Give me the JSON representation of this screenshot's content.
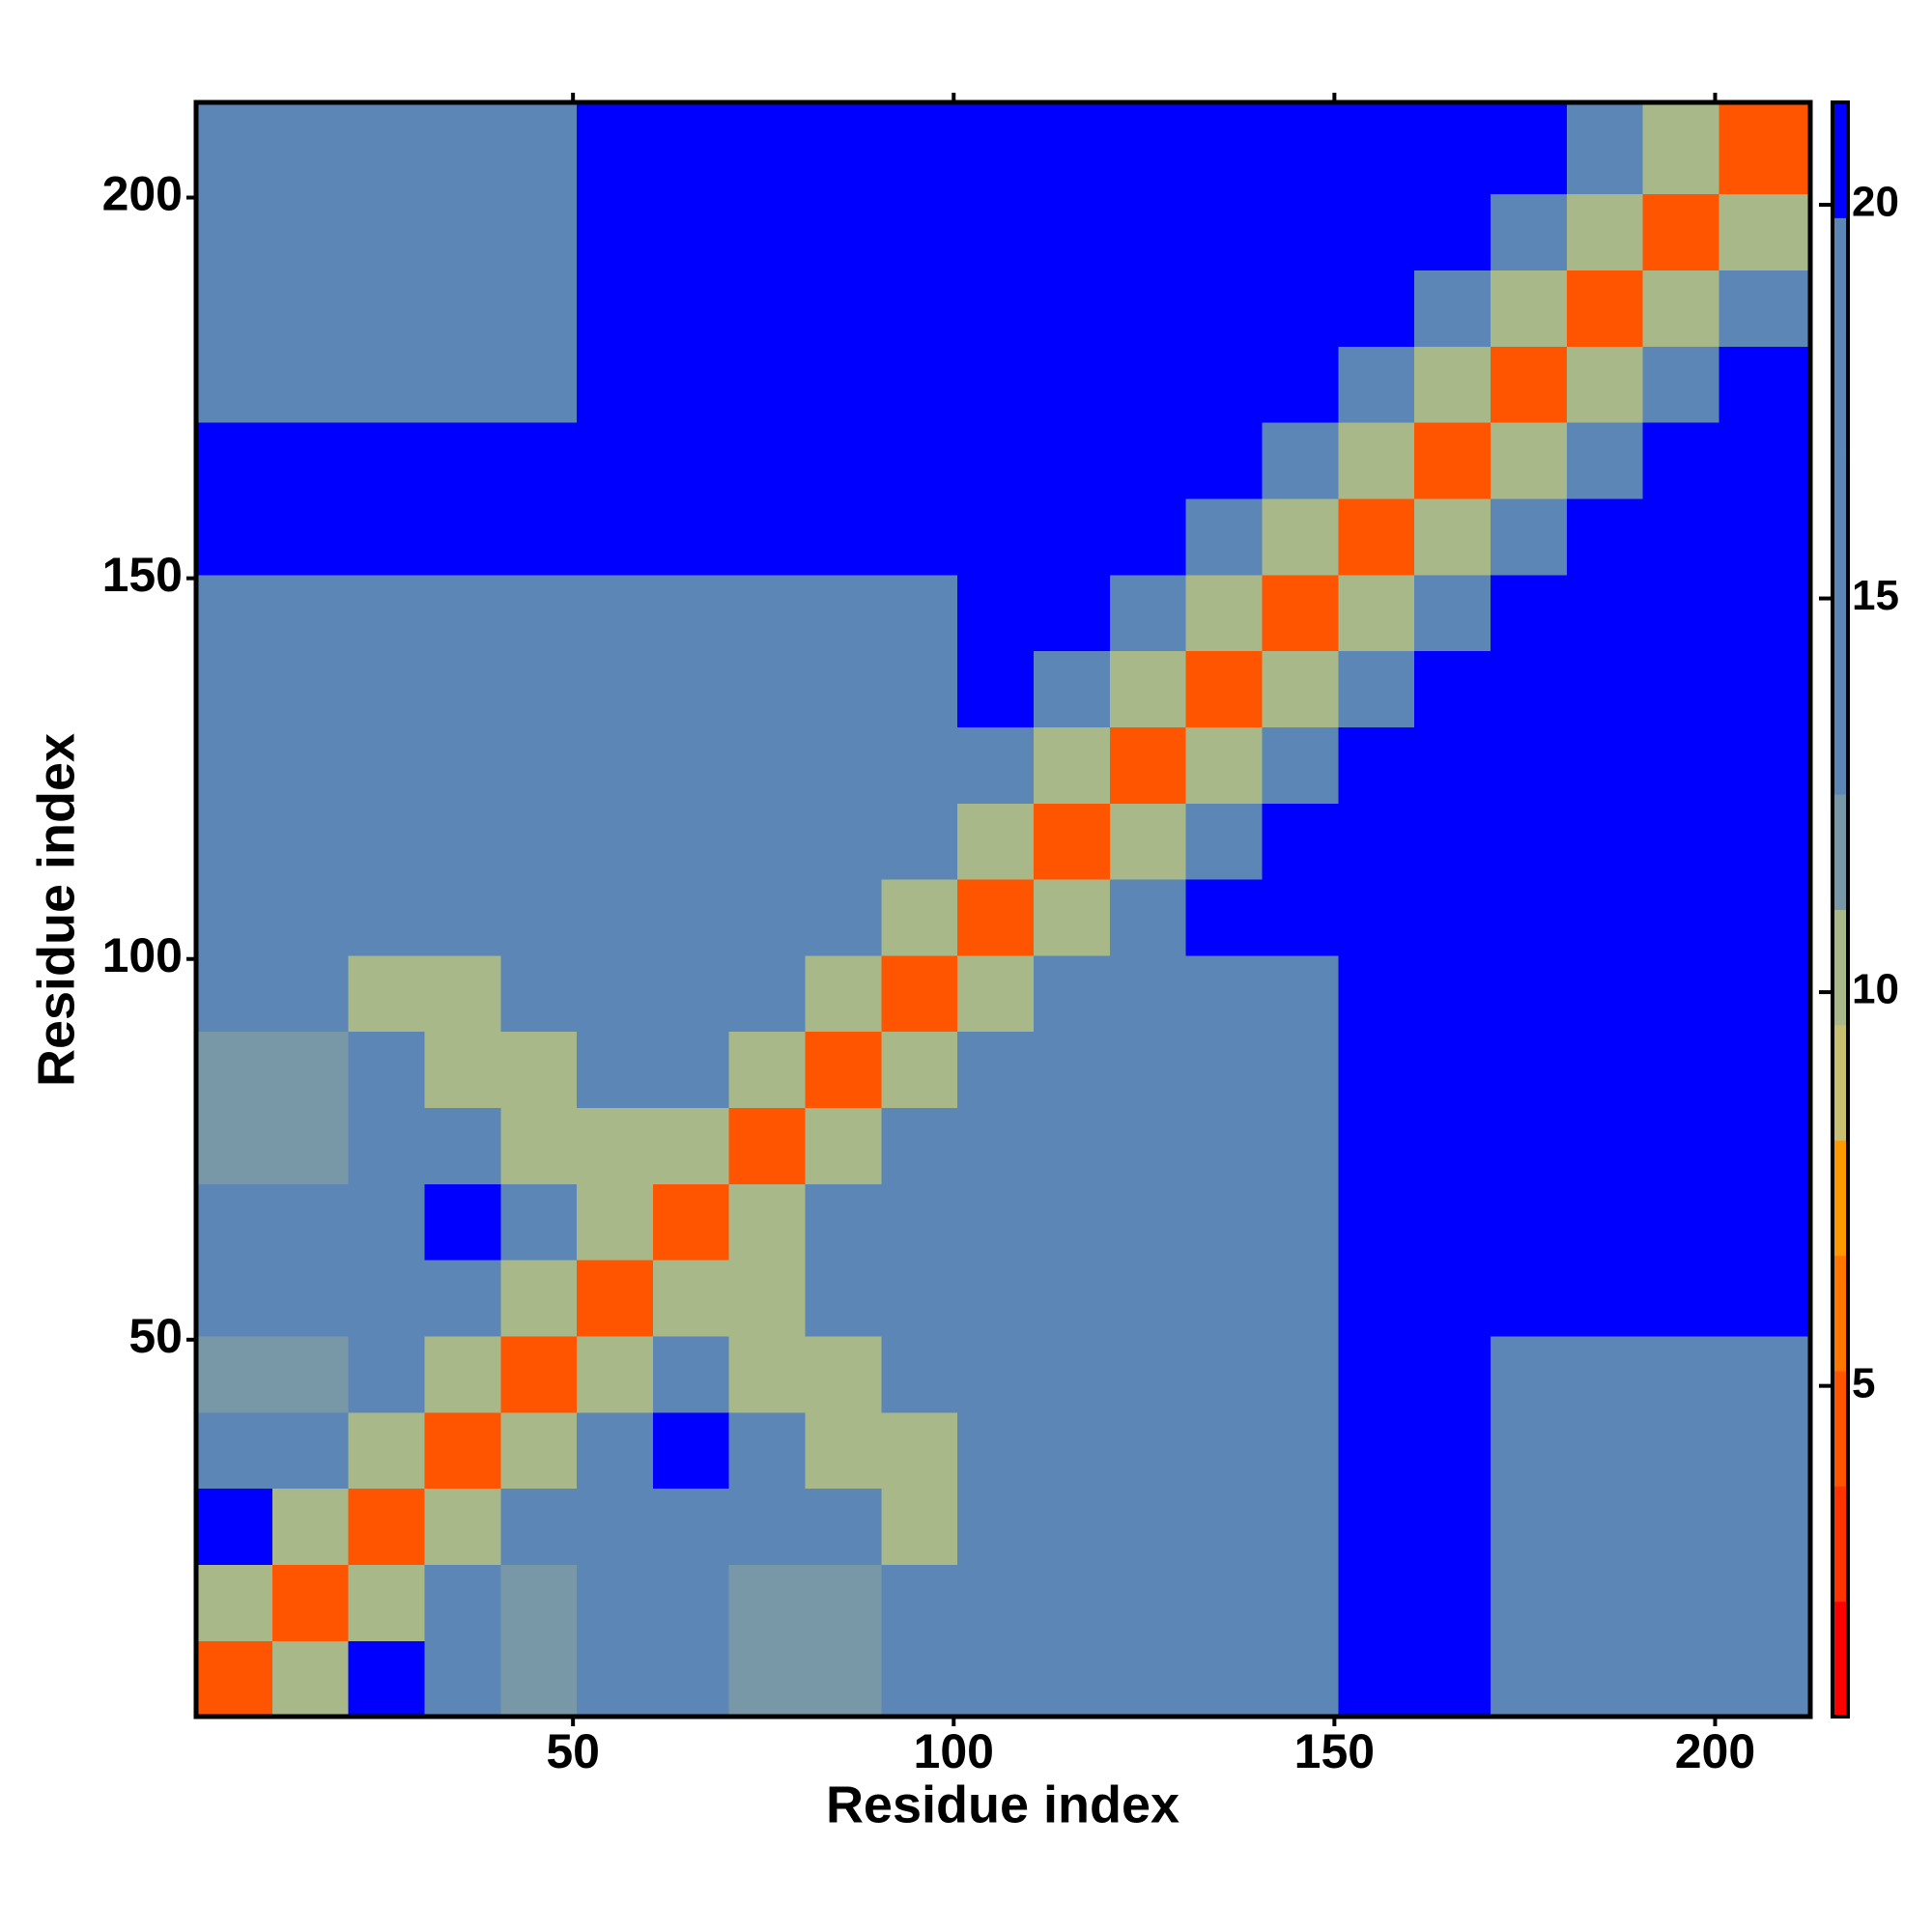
{
  "chart_data": {
    "type": "heatmap",
    "x_label": "Residue index",
    "y_label": "Residue index",
    "xlim": [
      0.5,
      212.5
    ],
    "ylim": [
      0.5,
      212.5
    ],
    "xticks": [
      50,
      100,
      150,
      200
    ],
    "yticks": [
      50,
      100,
      150,
      200
    ],
    "x_bins": [
      0.5,
      10.5,
      20.5,
      30.5,
      40.5,
      50.5,
      60.5,
      70.5,
      80.5,
      90.5,
      100.5,
      110.5,
      120.5,
      130.5,
      140.5,
      150.5,
      160.5,
      170.5,
      180.5,
      190.5,
      200.5,
      212.5
    ],
    "y_bins": [
      0.5,
      10.5,
      20.5,
      30.5,
      40.5,
      50.5,
      60.5,
      70.5,
      80.5,
      90.5,
      100.5,
      110.5,
      120.5,
      130.5,
      140.5,
      150.5,
      160.5,
      170.5,
      180.5,
      190.5,
      200.5,
      212.5
    ],
    "zlim": [
      0.8,
      21.3
    ],
    "zticks": [
      5,
      10,
      15,
      20
    ],
    "colors": [
      "#ff0000",
      "#ff3300",
      "#ff5500",
      "#ff7700",
      "#ff9900",
      "#c8c070",
      "#a8b888",
      "#7898a8",
      "#5b86b6",
      "#5b86b6",
      "#5b86b6",
      "#5b86b6",
      "#5b86b6",
      "#0000ff"
    ],
    "z": [
      [
        5,
        11,
        20,
        16,
        12,
        16,
        16,
        12,
        12,
        16,
        17,
        17,
        19,
        19,
        19,
        21,
        21,
        19,
        19,
        19,
        19
      ],
      [
        11,
        5,
        11,
        16,
        12,
        16,
        16,
        12,
        12,
        16,
        17,
        17,
        19,
        19,
        19,
        21,
        21,
        19,
        19,
        19,
        19
      ],
      [
        20,
        11,
        5,
        11,
        16,
        16,
        19,
        16,
        16,
        10,
        17,
        17,
        19,
        19,
        19,
        21,
        21,
        19,
        19,
        19,
        19
      ],
      [
        16,
        16,
        11,
        5,
        11,
        16,
        21,
        19,
        10,
        10,
        17,
        17,
        19,
        19,
        19,
        21,
        21,
        19,
        19,
        19,
        19
      ],
      [
        12,
        12,
        16,
        11,
        5,
        11,
        16,
        10,
        10,
        16,
        17,
        17,
        19,
        19,
        19,
        21,
        21,
        19,
        19,
        19,
        19
      ],
      [
        16,
        16,
        16,
        16,
        11,
        5,
        11,
        10,
        16,
        16,
        18,
        19,
        19,
        19,
        19,
        21,
        21,
        20,
        20,
        20,
        20
      ],
      [
        16,
        16,
        19,
        21,
        16,
        11,
        5,
        11,
        16,
        16,
        18,
        19,
        19,
        19,
        19,
        21,
        21,
        20,
        20,
        20,
        20
      ],
      [
        12,
        12,
        16,
        19,
        10,
        10,
        11,
        5,
        11,
        16,
        18,
        19,
        19,
        19,
        19,
        21,
        21,
        20,
        20,
        20,
        20
      ],
      [
        12,
        12,
        16,
        10,
        10,
        16,
        16,
        11,
        5,
        11,
        17,
        19,
        19,
        19,
        19,
        21,
        21,
        20,
        20,
        20,
        20
      ],
      [
        16,
        16,
        10,
        10,
        16,
        16,
        16,
        16,
        11,
        5,
        11,
        17,
        19,
        19,
        19,
        21,
        21,
        20,
        20,
        20,
        20
      ],
      [
        17,
        17,
        17,
        17,
        17,
        18,
        18,
        18,
        17,
        11,
        5,
        11,
        17,
        21,
        21,
        21,
        21,
        21,
        21,
        21,
        21
      ],
      [
        17,
        17,
        17,
        17,
        17,
        19,
        19,
        19,
        19,
        17,
        11,
        5,
        11,
        17,
        21,
        21,
        21,
        21,
        21,
        21,
        21
      ],
      [
        19,
        19,
        19,
        19,
        19,
        19,
        19,
        19,
        19,
        19,
        17,
        11,
        5,
        11,
        17,
        21,
        21,
        21,
        21,
        21,
        21
      ],
      [
        19,
        19,
        19,
        19,
        19,
        19,
        19,
        19,
        19,
        19,
        21,
        17,
        11,
        5,
        11,
        17,
        21,
        21,
        21,
        21,
        21
      ],
      [
        19,
        19,
        19,
        19,
        19,
        19,
        19,
        19,
        19,
        19,
        21,
        21,
        17,
        11,
        5,
        11,
        17,
        21,
        21,
        21,
        21
      ],
      [
        21,
        21,
        21,
        21,
        21,
        21,
        21,
        21,
        21,
        21,
        21,
        21,
        21,
        17,
        11,
        5,
        11,
        17,
        21,
        21,
        21
      ],
      [
        21,
        21,
        21,
        21,
        21,
        21,
        21,
        21,
        21,
        21,
        21,
        21,
        21,
        21,
        17,
        11,
        5,
        11,
        17,
        21,
        21
      ],
      [
        19,
        19,
        19,
        19,
        19,
        20,
        20,
        20,
        20,
        20,
        21,
        21,
        21,
        21,
        21,
        17,
        11,
        5,
        11,
        17,
        21
      ],
      [
        19,
        19,
        19,
        19,
        19,
        20,
        20,
        20,
        20,
        20,
        21,
        21,
        21,
        21,
        21,
        21,
        17,
        11,
        5,
        11,
        17
      ],
      [
        19,
        19,
        19,
        19,
        19,
        20,
        20,
        20,
        20,
        20,
        21,
        21,
        21,
        21,
        21,
        21,
        21,
        17,
        11,
        5,
        11
      ],
      [
        19,
        19,
        19,
        19,
        19,
        20,
        20,
        20,
        20,
        20,
        21,
        21,
        21,
        21,
        21,
        21,
        21,
        21,
        17,
        11,
        5
      ]
    ]
  }
}
